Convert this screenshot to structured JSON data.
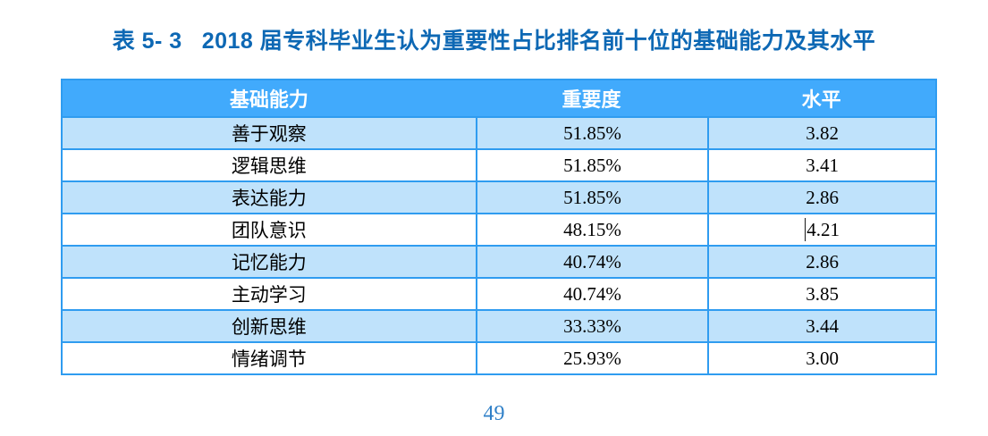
{
  "document": {
    "caption": {
      "prefix": "表 5- 3",
      "text": "2018 届专科毕业生认为重要性占比排名前十位的基础能力及其水平"
    },
    "page_number": "49"
  },
  "table": {
    "columns": [
      {
        "key": "ability",
        "label": "基础能力"
      },
      {
        "key": "importance",
        "label": "重要度"
      },
      {
        "key": "level",
        "label": "水平"
      }
    ],
    "rows": [
      {
        "ability": "善于观察",
        "importance": "51.85%",
        "level": "3.82"
      },
      {
        "ability": "逻辑思维",
        "importance": "51.85%",
        "level": "3.41"
      },
      {
        "ability": "表达能力",
        "importance": "51.85%",
        "level": "2.86"
      },
      {
        "ability": "团队意识",
        "importance": "48.15%",
        "level": "4.21",
        "caret_before_level": true
      },
      {
        "ability": "记忆能力",
        "importance": "40.74%",
        "level": "2.86"
      },
      {
        "ability": "主动学习",
        "importance": "40.74%",
        "level": "3.85"
      },
      {
        "ability": "创新思维",
        "importance": "33.33%",
        "level": "3.44"
      },
      {
        "ability": "情绪调节",
        "importance": "25.93%",
        "level": "3.00"
      }
    ]
  },
  "colors": {
    "header_bg": "#41aafc",
    "stripe_bg": "#bfe2fb",
    "border": "#2f9cf0",
    "title": "#0d68b4",
    "page_number": "#3080c8",
    "header_text": "#ffffff",
    "cell_text": "#000000"
  },
  "chart_data": {
    "type": "table",
    "title": "表 5- 3 2018 届专科毕业生认为重要性占比排名前十位的基础能力及其水平",
    "categories": [
      "善于观察",
      "逻辑思维",
      "表达能力",
      "团队意识",
      "记忆能力",
      "主动学习",
      "创新思维",
      "情绪调节"
    ],
    "series": [
      {
        "name": "重要度",
        "values": [
          51.85,
          51.85,
          51.85,
          48.15,
          40.74,
          40.74,
          33.33,
          25.93
        ]
      },
      {
        "name": "水平",
        "values": [
          3.82,
          3.41,
          2.86,
          4.21,
          2.86,
          3.85,
          3.44,
          3.0
        ]
      }
    ]
  }
}
